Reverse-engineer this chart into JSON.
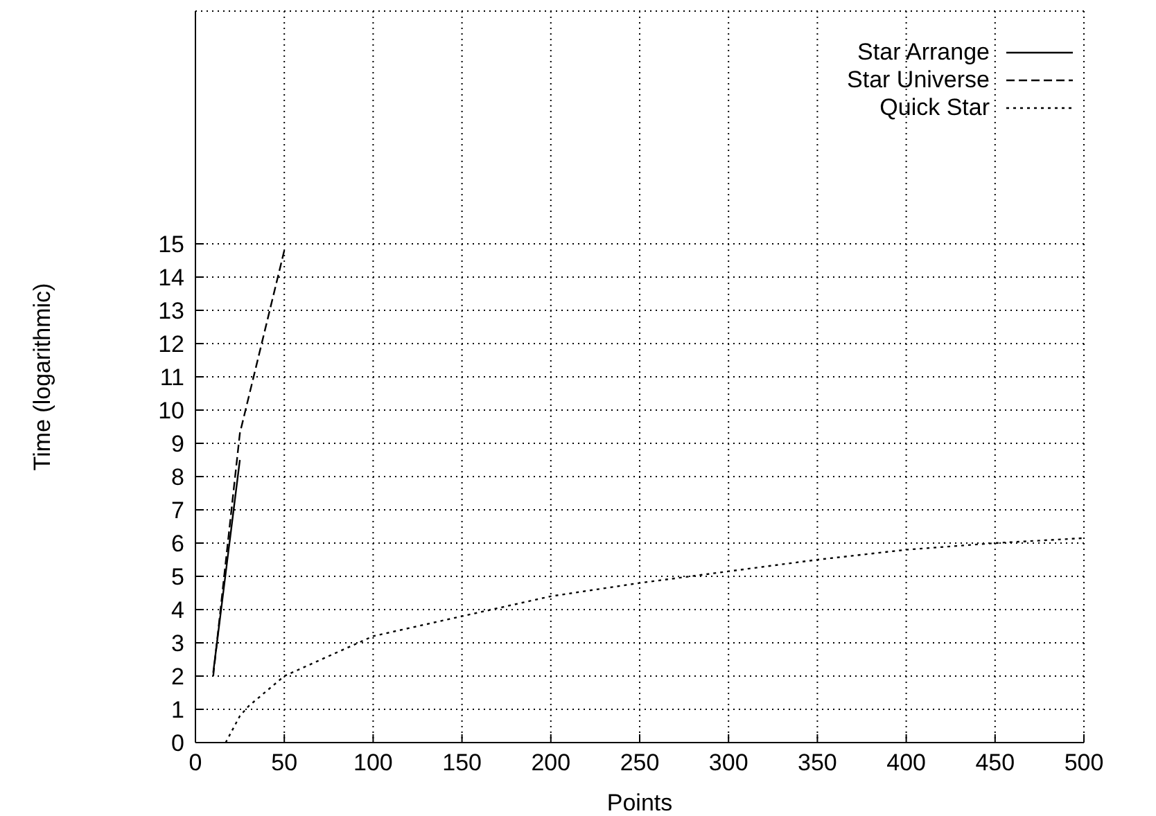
{
  "chart_data": {
    "type": "line",
    "xlabel": "Points",
    "ylabel": "Time (logarithmic)",
    "xlim": [
      0,
      500
    ],
    "xticks": [
      0,
      50,
      100,
      150,
      200,
      250,
      300,
      350,
      400,
      450,
      500
    ],
    "ylim": [
      0,
      22
    ],
    "yticks": [
      0,
      1,
      2,
      3,
      4,
      5,
      6,
      7,
      8,
      9,
      10,
      11,
      12,
      13,
      14,
      15
    ],
    "grid": true,
    "legend": "top right",
    "marker": "none",
    "series": [
      {
        "name": "Star Arrange",
        "color": "#000000",
        "line_style": "solid",
        "x": [
          10,
          25
        ],
        "values": [
          2.1,
          8.5
        ]
      },
      {
        "name": "Star Universe",
        "color": "#000000",
        "line_style": "dashed",
        "x": [
          10,
          25,
          50
        ],
        "values": [
          2.0,
          9.3,
          14.8
        ]
      },
      {
        "name": "Quick Star",
        "color": "#000000",
        "line_style": "dotted",
        "x": [
          17,
          20,
          25,
          30,
          50,
          100,
          150,
          200,
          250,
          300,
          350,
          400,
          450,
          500
        ],
        "values": [
          0,
          0.3,
          0.8,
          1.1,
          2.0,
          3.2,
          3.8,
          4.4,
          4.8,
          5.15,
          5.5,
          5.8,
          6.0,
          6.15
        ]
      }
    ]
  }
}
